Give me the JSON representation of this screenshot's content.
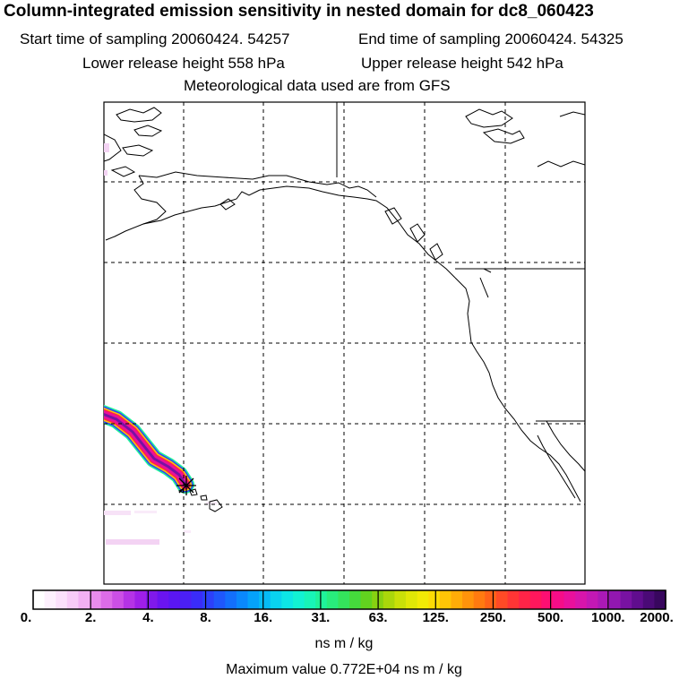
{
  "header": {
    "title": "Column-integrated emission sensitivity in nested domain for dc8_060423",
    "start_label": "Start time of sampling 20060424. 54257",
    "end_label": "End time of sampling 20060424. 54325",
    "lower_label": "Lower release height  558 hPa",
    "upper_label": "Upper release height  542 hPa",
    "met_label": "Meteorological data used are from GFS"
  },
  "colorbar": {
    "ticks": [
      "0.",
      "2.",
      "4.",
      "8.",
      "16.",
      "31.",
      "63.",
      "125.",
      "250.",
      "500.",
      "1000.",
      "2000."
    ],
    "colors": [
      "#ffffff",
      "#fdf0fd",
      "#fbe0fb",
      "#f8cbf8",
      "#f2b0f3",
      "#e98ced",
      "#dc6ce8",
      "#cc4fe6",
      "#b533e6",
      "#9f1fe8",
      "#8019ea",
      "#6a14ef",
      "#5a16f2",
      "#4b1ff5",
      "#3a2cf8",
      "#2c40fa",
      "#1f57fb",
      "#136ffc",
      "#0a88fc",
      "#05a2fa",
      "#06bbf5",
      "#09d3ef",
      "#0de6e6",
      "#12f2d3",
      "#18f5b8",
      "#1ff29a",
      "#28ec7c",
      "#34e45c",
      "#45da3c",
      "#62d21f",
      "#87d111",
      "#aad70b",
      "#c9e008",
      "#e0e706",
      "#f2ea05",
      "#fcdc05",
      "#ffc506",
      "#ffac08",
      "#ff930b",
      "#ff7a10",
      "#ff6218",
      "#ff4a26",
      "#ff3535",
      "#ff2447",
      "#ff175c",
      "#fd0f72",
      "#f50d88",
      "#e9109c",
      "#d815ab",
      "#c318b4",
      "#ab19b6",
      "#9217b0",
      "#7812a2",
      "#600d8e",
      "#4a0a76",
      "#38075e"
    ],
    "units": "ns m / kg",
    "max_label": "Maximum value  0.772E+04 ns m / kg"
  }
}
